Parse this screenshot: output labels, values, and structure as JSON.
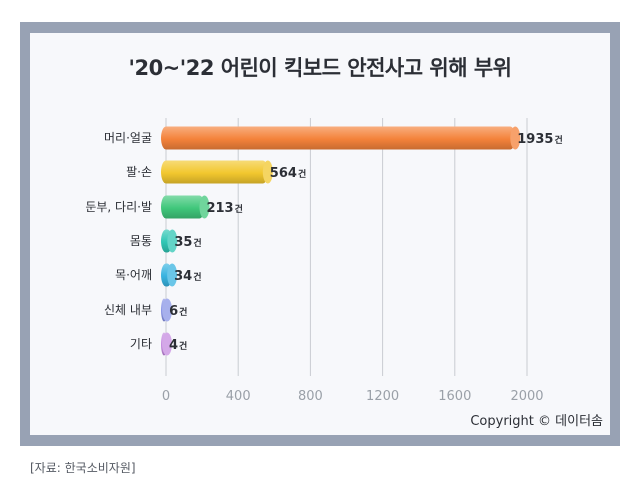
{
  "chart_data": {
    "type": "bar",
    "orientation": "horizontal",
    "title": "'20~'22 어린이 킥보드 안전사고 위해 부위",
    "categories": [
      "머리·얼굴",
      "팔·손",
      "둔부, 다리·발",
      "몸통",
      "목·어깨",
      "신체 내부",
      "기타"
    ],
    "values": [
      1935,
      564,
      213,
      35,
      34,
      6,
      4
    ],
    "value_unit": "건",
    "colors": [
      "#f4823a",
      "#f2c72e",
      "#40c77b",
      "#2fc6b4",
      "#38b3e0",
      "#8a95e6",
      "#c58be0"
    ],
    "xlim": [
      0,
      2000
    ],
    "xticks": [
      0,
      400,
      800,
      1200,
      1600,
      2000
    ],
    "grid": true,
    "legend": "none"
  },
  "footer": {
    "copyright": "Copyright © 데이터솜",
    "source": "[자료: 한국소비자원]"
  }
}
